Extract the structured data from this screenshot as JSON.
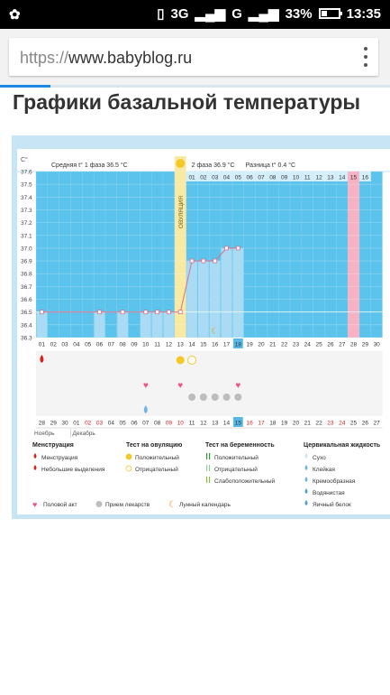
{
  "status_bar": {
    "network": "3G",
    "carrier": "G",
    "battery": "33%",
    "battery_level": 0.33,
    "time": "13:35"
  },
  "browser": {
    "url_scheme": "https://",
    "url_host": "www.babyblog.ru",
    "load_progress": 0.13
  },
  "page": {
    "title": "Графики базальной температуры"
  },
  "chart_data": {
    "type": "line",
    "yunit": "C°",
    "ylim": [
      36.3,
      37.6
    ],
    "y_ticks": [
      "37.6",
      "37.5",
      "37.4",
      "37.3",
      "37.2",
      "37.1",
      "37.0",
      "36.9",
      "36.8",
      "36.7",
      "36.6",
      "36.5",
      "36.4",
      "36.3"
    ],
    "phase1_label": "Средняя t° 1 фаза",
    "phase1_value": "36.5 °C",
    "phase2_label": "2 фаза",
    "phase2_value": "36.9 °C",
    "diff_label": "Разница",
    "diff_value": "t° 0.4 °C",
    "ovulation_label": "ОВУЛЯЦИЯ",
    "phase2_day_labels": [
      "01",
      "02",
      "03",
      "04",
      "05",
      "06",
      "07",
      "08",
      "09",
      "10",
      "11",
      "12",
      "13",
      "14",
      "15",
      "16"
    ],
    "cycle_days": [
      "01",
      "02",
      "03",
      "04",
      "05",
      "06",
      "07",
      "08",
      "09",
      "10",
      "11",
      "12",
      "13",
      "14",
      "15",
      "16",
      "17",
      "18",
      "19",
      "20",
      "21",
      "22",
      "23",
      "24",
      "25",
      "26",
      "27",
      "28",
      "29",
      "30"
    ],
    "temperatures": [
      36.5,
      null,
      null,
      null,
      null,
      36.5,
      null,
      36.5,
      null,
      36.5,
      36.5,
      36.5,
      36.5,
      36.9,
      36.9,
      36.9,
      37.0,
      37.0,
      null,
      null,
      null,
      null,
      null,
      null,
      null,
      null,
      null,
      null,
      null,
      null
    ],
    "ovulation_day": 13,
    "current_day": 18,
    "pink_day": 28,
    "calendar_dates": [
      "28",
      "29",
      "30",
      "01",
      "02",
      "03",
      "04",
      "05",
      "06",
      "07",
      "08",
      "09",
      "10",
      "11",
      "12",
      "13",
      "14",
      "15",
      "16",
      "17",
      "18",
      "19",
      "20",
      "21",
      "22",
      "23",
      "24",
      "25",
      "26",
      "27"
    ],
    "month_labels": [
      "Ноябрь",
      "Декабрь"
    ],
    "markers": {
      "menstruation_day": 1,
      "ovulation_positive_day": 13,
      "ovulation_negative_day": 14,
      "intercourse_days": [
        10,
        13,
        18
      ],
      "medication_days": [
        14,
        15,
        16,
        17,
        18
      ],
      "water_day": 10,
      "lunar_day": 16
    }
  },
  "legend": {
    "menstruation": {
      "title": "Менструация",
      "items": [
        "Менструация",
        "Небольшие выделения"
      ]
    },
    "ovulation_test": {
      "title": "Тест на овуляцию",
      "items": [
        "Положительный",
        "Отрицательный"
      ]
    },
    "pregnancy_test": {
      "title": "Тест на беременность",
      "items": [
        "Положительный",
        "Отрицательный",
        "Слабоположительный"
      ]
    },
    "cervical": {
      "title": "Цервикальная жидкость",
      "items": [
        "Сухо",
        "Клейкая",
        "Кремообразная",
        "Водянистая",
        "Яичный белок"
      ]
    },
    "other": [
      "Половой акт",
      "Прием лекарств",
      "Лунный календарь"
    ]
  },
  "colors": {
    "chart_blue": "#5bc3ec",
    "data_blue": "#a9dbf4",
    "ovulation_yellow": "#f8e9a3",
    "line": "#d9708c",
    "pink": "#f7b2c4",
    "heart": "#f2508a",
    "sun": "#f6c728"
  }
}
